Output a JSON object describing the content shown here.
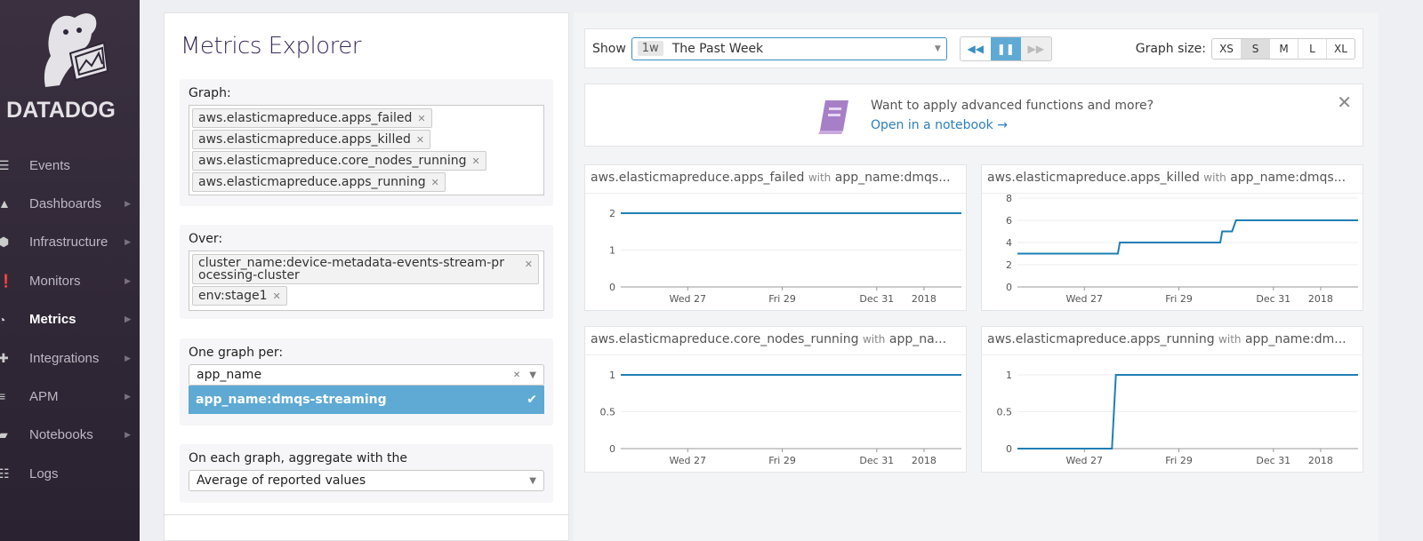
{
  "sidebar": {
    "brand": "DATADOG",
    "items": [
      {
        "label": "Events",
        "icon": "events-icon",
        "arrow": false
      },
      {
        "label": "Dashboards",
        "icon": "dashboards-icon",
        "arrow": true
      },
      {
        "label": "Infrastructure",
        "icon": "infrastructure-icon",
        "arrow": true
      },
      {
        "label": "Monitors",
        "icon": "monitors-icon",
        "arrow": true
      },
      {
        "label": "Metrics",
        "icon": "metrics-icon",
        "arrow": true,
        "active": true
      },
      {
        "label": "Integrations",
        "icon": "integrations-icon",
        "arrow": true
      },
      {
        "label": "APM",
        "icon": "apm-icon",
        "arrow": true
      },
      {
        "label": "Notebooks",
        "icon": "notebooks-icon",
        "arrow": true
      },
      {
        "label": "Logs",
        "icon": "logs-icon",
        "arrow": false
      }
    ]
  },
  "explorer": {
    "title": "Metrics Explorer",
    "graph_label": "Graph:",
    "graph_tags": [
      "aws.elasticmapreduce.apps_failed",
      "aws.elasticmapreduce.apps_killed",
      "aws.elasticmapreduce.core_nodes_running",
      "aws.elasticmapreduce.apps_running"
    ],
    "over_label": "Over:",
    "over_tags": [
      "cluster_name:device-metadata-events-stream-processing-cluster",
      "env:stage1"
    ],
    "per_label": "One graph per:",
    "per_value": "app_name",
    "per_option": "app_name:dmqs-streaming",
    "agg_label": "On each graph, aggregate with the",
    "agg_value": "Average of reported values"
  },
  "toolbar": {
    "show_label": "Show",
    "time_badge": "1w",
    "time_value": "The Past Week",
    "graph_size_label": "Graph size:",
    "sizes": [
      "XS",
      "S",
      "M",
      "L",
      "XL"
    ],
    "selected_size": "S"
  },
  "banner": {
    "question": "Want to apply advanced functions and more?",
    "link": "Open in a notebook →"
  },
  "colors": {
    "line": "#1f7fb4",
    "accent": "#5eaad4",
    "sidebar": "#2f2638",
    "notebook": "#a77fc7"
  },
  "chart_data": [
    {
      "type": "line",
      "metric": "aws.elasticmapreduce.apps_failed",
      "with": "with",
      "scope": "app_name:dmqs...",
      "ylim": [
        0,
        2
      ],
      "yticks": [
        "0",
        "1",
        "2"
      ],
      "xticks": [
        {
          "label": "Wed 27",
          "date": "2017-12-27"
        },
        {
          "label": "Fri 29",
          "date": "2017-12-29"
        },
        {
          "label": "Dec 31",
          "date": "2017-12-31"
        },
        {
          "label": "2018",
          "date": "2018-01-01"
        }
      ],
      "xlim": [
        "2017-12-25T14:00",
        "2018-01-01T19:00"
      ],
      "series": [
        {
          "points": [
            [
              "2017-12-25T14:00",
              2
            ],
            [
              "2018-01-01T19:00",
              2
            ]
          ]
        }
      ]
    },
    {
      "type": "line",
      "metric": "aws.elasticmapreduce.apps_killed",
      "with": "with",
      "scope": "app_name:dmqs...",
      "ylim": [
        0,
        8
      ],
      "yticks": [
        "0",
        "2",
        "4",
        "6",
        "8"
      ],
      "xticks": [
        {
          "label": "Wed 27",
          "date": "2017-12-27"
        },
        {
          "label": "Fri 29",
          "date": "2017-12-29"
        },
        {
          "label": "Dec 31",
          "date": "2017-12-31"
        },
        {
          "label": "2018",
          "date": "2018-01-01"
        }
      ],
      "xlim": [
        "2017-12-25T14:00",
        "2018-01-01T19:00"
      ],
      "series": [
        {
          "points": [
            [
              "2017-12-25T14:00",
              3
            ],
            [
              "2017-12-27T17:00",
              3
            ],
            [
              "2017-12-27T18:00",
              4
            ],
            [
              "2017-12-29T21:00",
              4
            ],
            [
              "2017-12-29T22:00",
              5
            ],
            [
              "2017-12-30T03:00",
              5
            ],
            [
              "2017-12-30T05:00",
              6
            ],
            [
              "2018-01-01T19:00",
              6
            ]
          ]
        }
      ]
    },
    {
      "type": "line",
      "metric": "aws.elasticmapreduce.core_nodes_running",
      "with": "with",
      "scope": "app_na...",
      "ylim": [
        0,
        1
      ],
      "yticks": [
        "0",
        "0.5",
        "1"
      ],
      "xticks": [
        {
          "label": "Wed 27",
          "date": "2017-12-27"
        },
        {
          "label": "Fri 29",
          "date": "2017-12-29"
        },
        {
          "label": "Dec 31",
          "date": "2017-12-31"
        },
        {
          "label": "2018",
          "date": "2018-01-01"
        }
      ],
      "xlim": [
        "2017-12-25T14:00",
        "2018-01-01T19:00"
      ],
      "series": [
        {
          "points": [
            [
              "2017-12-25T14:00",
              1
            ],
            [
              "2018-01-01T19:00",
              1
            ]
          ]
        }
      ]
    },
    {
      "type": "line",
      "metric": "aws.elasticmapreduce.apps_running",
      "with": "with",
      "scope": "app_name:dm...",
      "ylim": [
        0,
        1
      ],
      "yticks": [
        "0",
        "0.5",
        "1"
      ],
      "xticks": [
        {
          "label": "Wed 27",
          "date": "2017-12-27"
        },
        {
          "label": "Fri 29",
          "date": "2017-12-29"
        },
        {
          "label": "Dec 31",
          "date": "2017-12-31"
        },
        {
          "label": "2018",
          "date": "2018-01-01"
        }
      ],
      "xlim": [
        "2017-12-25T14:00",
        "2018-01-01T19:00"
      ],
      "series": [
        {
          "points": [
            [
              "2017-12-25T14:00",
              0
            ],
            [
              "2017-12-27T14:00",
              0
            ],
            [
              "2017-12-27T16:00",
              1
            ],
            [
              "2018-01-01T19:00",
              1
            ]
          ]
        }
      ]
    }
  ]
}
